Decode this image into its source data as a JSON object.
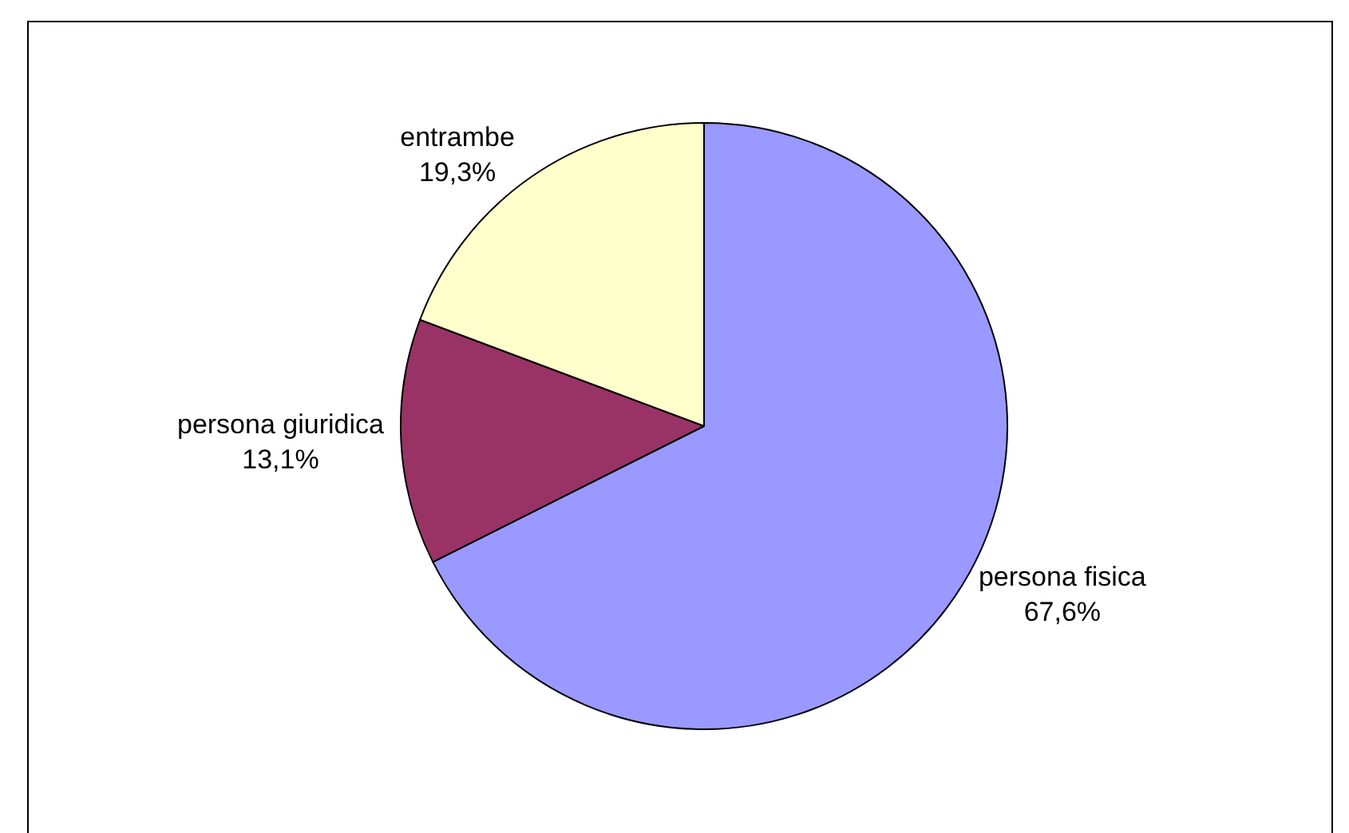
{
  "chart_data": {
    "type": "pie",
    "categories": [
      "persona fisica",
      "persona giuridica",
      "entrambe"
    ],
    "values": [
      67.6,
      13.1,
      19.3
    ],
    "value_labels": [
      "67,6%",
      "13,1%",
      "19,3%"
    ],
    "colors": [
      "#9999ff",
      "#993366",
      "#ffffcc"
    ]
  }
}
